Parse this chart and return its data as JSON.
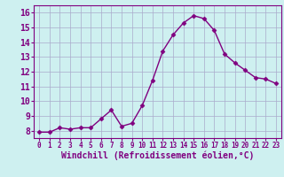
{
  "x": [
    0,
    1,
    2,
    3,
    4,
    5,
    6,
    7,
    8,
    9,
    10,
    11,
    12,
    13,
    14,
    15,
    16,
    17,
    18,
    19,
    20,
    21,
    22,
    23
  ],
  "y": [
    7.9,
    7.9,
    8.2,
    8.1,
    8.2,
    8.2,
    8.8,
    9.4,
    8.3,
    8.5,
    9.7,
    11.4,
    13.4,
    14.5,
    15.3,
    15.8,
    15.6,
    14.8,
    13.2,
    12.6,
    12.1,
    11.6,
    11.5,
    11.2
  ],
  "line_color": "#800080",
  "marker": "D",
  "marker_size": 2.5,
  "bg_color": "#cef0f0",
  "grid_color": "#aaaacc",
  "xlabel": "Windchill (Refroidissement éolien,°C)",
  "xlabel_color": "#800080",
  "tick_color": "#800080",
  "ylim": [
    7.5,
    16.5
  ],
  "xlim": [
    -0.5,
    23.5
  ],
  "yticks": [
    8,
    9,
    10,
    11,
    12,
    13,
    14,
    15,
    16
  ],
  "xticks": [
    0,
    1,
    2,
    3,
    4,
    5,
    6,
    7,
    8,
    9,
    10,
    11,
    12,
    13,
    14,
    15,
    16,
    17,
    18,
    19,
    20,
    21,
    22,
    23
  ],
  "font_size_ticks_y": 7,
  "font_size_ticks_x": 5.5,
  "font_size_xlabel": 7,
  "line_width": 1.0
}
